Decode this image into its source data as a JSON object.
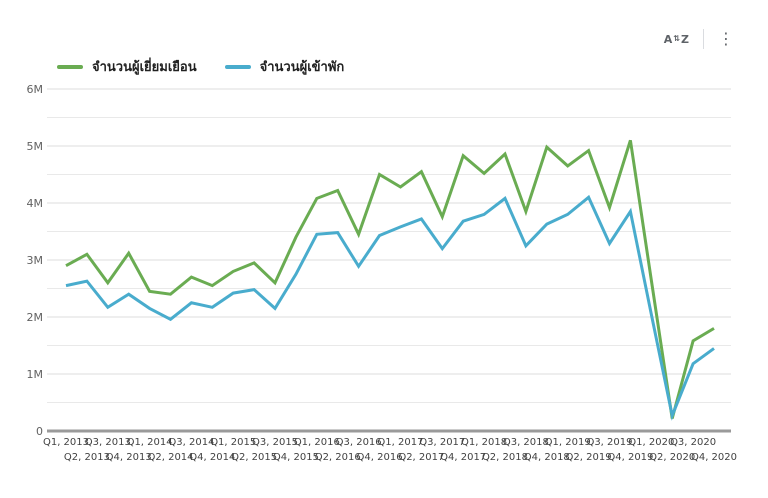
{
  "toolbar": {
    "sort_label": "AZ",
    "menu_label": "⋮"
  },
  "legend": [
    {
      "label": "จำนวนผู้เยี่ยมเยือน",
      "color": "#6aac52"
    },
    {
      "label": "จำนวนผู้เข้าพัก",
      "color": "#49accd"
    }
  ],
  "chart_data": {
    "type": "line",
    "title": "",
    "xlabel": "",
    "ylabel": "",
    "legend_position": "top-left",
    "grid": true,
    "ylim": [
      0,
      6000000
    ],
    "y_tick_labels": [
      "0",
      "1M",
      "2M",
      "3M",
      "4M",
      "5M",
      "6M"
    ],
    "y_minor_step": 500000,
    "categories": [
      "Q1, 2013",
      "Q2, 2013",
      "Q3, 2013",
      "Q4, 2013",
      "Q1, 2014",
      "Q2, 2014",
      "Q3, 2014",
      "Q4, 2014",
      "Q1, 2015",
      "Q2, 2015",
      "Q3, 2015",
      "Q4, 2015",
      "Q1, 2016",
      "Q2, 2016",
      "Q3, 2016",
      "Q4, 2016",
      "Q1, 2017",
      "Q2, 2017",
      "Q3, 2017",
      "Q4, 2017",
      "Q1, 2018",
      "Q2, 2018",
      "Q3, 2018",
      "Q4, 2018",
      "Q1, 2019",
      "Q2, 2019",
      "Q3, 2019",
      "Q4, 2019",
      "Q1, 2020",
      "Q2, 2020",
      "Q3, 2020",
      "Q4, 2020"
    ],
    "series": [
      {
        "name": "จำนวนผู้เยี่ยมเยือน",
        "color": "#6aac52",
        "values_millions": [
          2.9,
          3.1,
          2.6,
          3.12,
          2.45,
          2.4,
          2.7,
          2.55,
          2.8,
          2.95,
          2.6,
          3.4,
          4.08,
          4.22,
          3.45,
          4.5,
          4.28,
          4.55,
          3.76,
          4.83,
          4.52,
          4.86,
          3.85,
          4.98,
          4.65,
          4.92,
          3.92,
          5.1,
          2.65,
          0.22,
          1.58,
          1.8
        ]
      },
      {
        "name": "จำนวนผู้เข้าพัก",
        "color": "#49accd",
        "values_millions": [
          2.55,
          2.63,
          2.17,
          2.4,
          2.15,
          1.96,
          2.25,
          2.17,
          2.42,
          2.48,
          2.15,
          2.75,
          3.45,
          3.48,
          2.89,
          3.43,
          3.58,
          3.72,
          3.2,
          3.68,
          3.8,
          4.08,
          3.25,
          3.63,
          3.8,
          4.1,
          3.29,
          3.85,
          2.05,
          0.27,
          1.18,
          1.45
        ]
      }
    ]
  }
}
